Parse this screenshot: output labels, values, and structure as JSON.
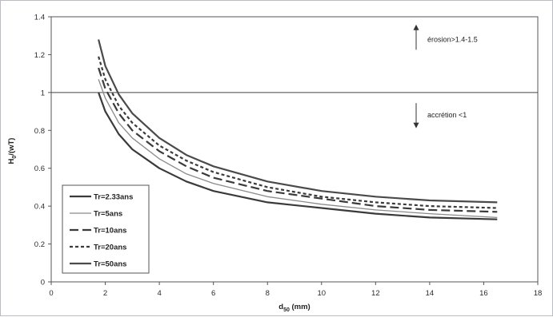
{
  "chart_data": {
    "type": "line",
    "xlabel": {
      "main": "d",
      "sub": "50",
      "rest": " (mm)"
    },
    "ylabel": {
      "main": "H",
      "sub": "0",
      "rest": "/(wT)"
    },
    "xlim": [
      0,
      18
    ],
    "ylim": [
      0,
      1.4
    ],
    "xticks": [
      "0",
      "2",
      "4",
      "6",
      "8",
      "10",
      "12",
      "14",
      "16",
      "18"
    ],
    "yticks": [
      "0",
      "0.2",
      "0.4",
      "0.6",
      "0.8",
      "1",
      "1.2",
      "1.4"
    ],
    "grid": false,
    "legend_position": "bottom-left",
    "reference_line": {
      "y": 1
    },
    "annotations": [
      {
        "text": "érosion>1.4-1.5",
        "arrow": "up",
        "x": 13.5,
        "y": 1.285
      },
      {
        "text": "accrétion <1",
        "arrow": "down",
        "x": 13.5,
        "y": 0.885
      }
    ],
    "series": [
      {
        "name": "Tr=2.33ans",
        "style": "solid-thick",
        "color": "#3a3a3a",
        "x": [
          1.75,
          2,
          2.5,
          3,
          4,
          5,
          6,
          8,
          10,
          12,
          14,
          16.5
        ],
        "y": [
          1.0,
          0.9,
          0.78,
          0.7,
          0.6,
          0.53,
          0.48,
          0.42,
          0.39,
          0.36,
          0.34,
          0.33
        ]
      },
      {
        "name": "Tr=5ans",
        "style": "solid-thin",
        "color": "#8a8a8a",
        "x": [
          1.75,
          2,
          2.5,
          3,
          4,
          5,
          6,
          8,
          10,
          12,
          14,
          16.5
        ],
        "y": [
          1.07,
          0.97,
          0.84,
          0.76,
          0.65,
          0.57,
          0.52,
          0.45,
          0.41,
          0.38,
          0.36,
          0.34
        ]
      },
      {
        "name": "Tr=10ans",
        "style": "dash-long",
        "color": "#3a3a3a",
        "x": [
          1.75,
          2,
          2.5,
          3,
          4,
          5,
          6,
          8,
          10,
          12,
          14,
          16.5
        ],
        "y": [
          1.13,
          1.02,
          0.89,
          0.8,
          0.69,
          0.61,
          0.55,
          0.48,
          0.44,
          0.4,
          0.38,
          0.37
        ]
      },
      {
        "name": "Tr=20ans",
        "style": "dash-short",
        "color": "#3a3a3a",
        "x": [
          1.75,
          2,
          2.5,
          3,
          4,
          5,
          6,
          8,
          10,
          12,
          14,
          16.5
        ],
        "y": [
          1.19,
          1.07,
          0.93,
          0.84,
          0.72,
          0.64,
          0.58,
          0.5,
          0.45,
          0.42,
          0.4,
          0.39
        ]
      },
      {
        "name": "Tr=50ans",
        "style": "solid-thick",
        "color": "#4a4a4a",
        "x": [
          1.75,
          2,
          2.5,
          3,
          4,
          5,
          6,
          8,
          10,
          12,
          14,
          16.5
        ],
        "y": [
          1.28,
          1.14,
          0.99,
          0.89,
          0.76,
          0.67,
          0.61,
          0.53,
          0.48,
          0.45,
          0.43,
          0.42
        ]
      }
    ]
  }
}
